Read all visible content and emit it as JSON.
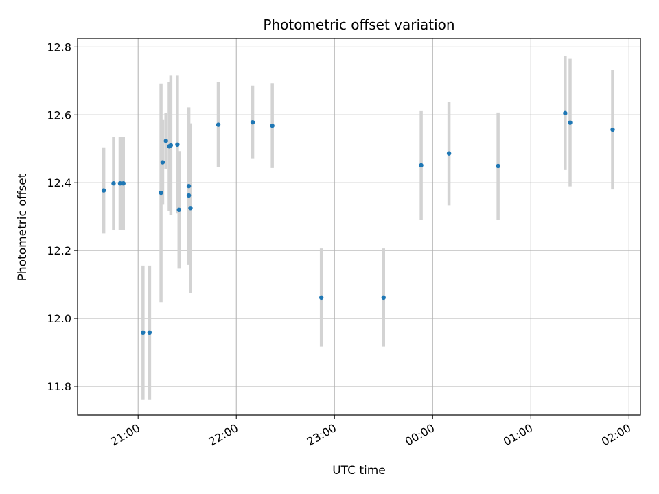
{
  "chart_data": {
    "type": "scatter",
    "title": "Photometric offset variation",
    "xlabel": "UTC time",
    "ylabel": "Photometric offset",
    "x_ticks": [
      "21:00",
      "22:00",
      "23:00",
      "00:00",
      "01:00",
      "02:00"
    ],
    "y_ticks": [
      "11.8",
      "12.0",
      "12.2",
      "12.4",
      "12.6",
      "12.8"
    ],
    "grid": true,
    "colors": {
      "point": "#1f77b4",
      "errorbar": "#d3d3d3",
      "grid": "#b0b0b0"
    },
    "points": [
      {
        "t": "20:39",
        "y": 12.377,
        "err": 0.127
      },
      {
        "t": "20:45",
        "y": 12.398,
        "err": 0.137
      },
      {
        "t": "20:49",
        "y": 12.398,
        "err": 0.137
      },
      {
        "t": "20:51",
        "y": 12.398,
        "err": 0.137
      },
      {
        "t": "21:03",
        "y": 11.958,
        "err": 0.198
      },
      {
        "t": "21:07",
        "y": 11.958,
        "err": 0.198
      },
      {
        "t": "21:14",
        "y": 12.37,
        "err": 0.322
      },
      {
        "t": "21:15",
        "y": 12.46,
        "err": 0.125
      },
      {
        "t": "21:17",
        "y": 12.523,
        "err": 0.083
      },
      {
        "t": "21:19",
        "y": 12.507,
        "err": 0.19
      },
      {
        "t": "21:20",
        "y": 12.51,
        "err": 0.205
      },
      {
        "t": "21:24",
        "y": 12.512,
        "err": 0.203
      },
      {
        "t": "21:25",
        "y": 12.32,
        "err": 0.173
      },
      {
        "t": "21:31",
        "y": 12.39,
        "err": 0.232
      },
      {
        "t": "21:31",
        "y": 12.362,
        "err": 0.2
      },
      {
        "t": "21:32",
        "y": 12.325,
        "err": 0.25
      },
      {
        "t": "21:49",
        "y": 12.571,
        "err": 0.125
      },
      {
        "t": "22:10",
        "y": 12.578,
        "err": 0.108
      },
      {
        "t": "22:22",
        "y": 12.568,
        "err": 0.125
      },
      {
        "t": "22:52",
        "y": 12.061,
        "err": 0.145
      },
      {
        "t": "23:30",
        "y": 12.061,
        "err": 0.145
      },
      {
        "t": "23:53",
        "y": 12.451,
        "err": 0.16
      },
      {
        "t": "00:10",
        "y": 12.486,
        "err": 0.153
      },
      {
        "t": "00:40",
        "y": 12.449,
        "err": 0.158
      },
      {
        "t": "01:21",
        "y": 12.605,
        "err": 0.168
      },
      {
        "t": "01:24",
        "y": 12.577,
        "err": 0.188
      },
      {
        "t": "01:50",
        "y": 12.556,
        "err": 0.176
      }
    ]
  }
}
